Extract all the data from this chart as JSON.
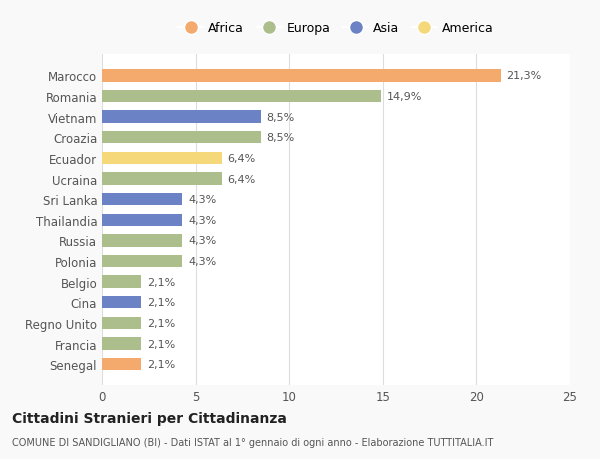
{
  "countries": [
    "Marocco",
    "Romania",
    "Vietnam",
    "Croazia",
    "Ecuador",
    "Ucraina",
    "Sri Lanka",
    "Thailandia",
    "Russia",
    "Polonia",
    "Belgio",
    "Cina",
    "Regno Unito",
    "Francia",
    "Senegal"
  ],
  "values": [
    21.3,
    14.9,
    8.5,
    8.5,
    6.4,
    6.4,
    4.3,
    4.3,
    4.3,
    4.3,
    2.1,
    2.1,
    2.1,
    2.1,
    2.1
  ],
  "labels": [
    "21,3%",
    "14,9%",
    "8,5%",
    "8,5%",
    "6,4%",
    "6,4%",
    "4,3%",
    "4,3%",
    "4,3%",
    "4,3%",
    "2,1%",
    "2,1%",
    "2,1%",
    "2,1%",
    "2,1%"
  ],
  "continents": [
    "Africa",
    "Europa",
    "Asia",
    "Europa",
    "America",
    "Europa",
    "Asia",
    "Asia",
    "Europa",
    "Europa",
    "Europa",
    "Asia",
    "Europa",
    "Europa",
    "Africa"
  ],
  "colors": {
    "Africa": "#F4A96D",
    "Europa": "#ABBE8B",
    "Asia": "#6B82C4",
    "America": "#F5D87A"
  },
  "legend_order": [
    "Africa",
    "Europa",
    "Asia",
    "America"
  ],
  "title": "Cittadini Stranieri per Cittadinanza",
  "subtitle": "COMUNE DI SANDIGLIANO (BI) - Dati ISTAT al 1° gennaio di ogni anno - Elaborazione TUTTITALIA.IT",
  "xlim": [
    0,
    25
  ],
  "xticks": [
    0,
    5,
    10,
    15,
    20,
    25
  ],
  "background_color": "#f9f9f9",
  "bar_background": "#ffffff"
}
